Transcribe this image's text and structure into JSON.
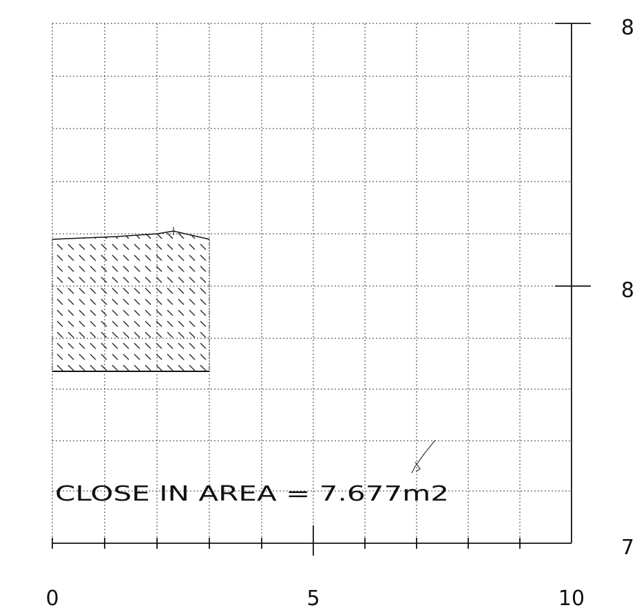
{
  "figure": {
    "x_ticks": [
      "0",
      "5",
      "10"
    ],
    "y_tick_labels_right": [
      "8",
      "8",
      "7"
    ],
    "annotation_text": "CLOSE IN AREA = 7.677m2",
    "grid": "dotted",
    "hatch_pattern": "diagonal",
    "ink_color": "#111111",
    "background_color": "#ffffff"
  }
}
